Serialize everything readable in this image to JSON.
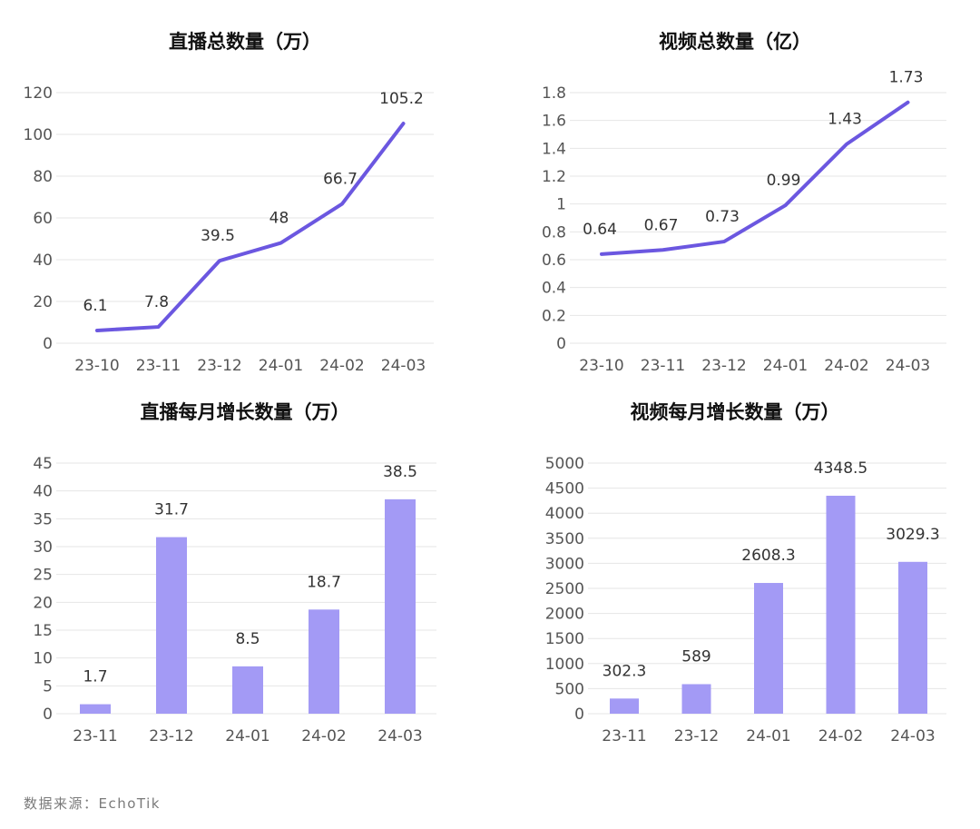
{
  "source_text": "数据来源：EchoTik",
  "colors": {
    "line": "#6b57e0",
    "bar": "#a39af5",
    "grid": "#e6e6e6",
    "text": "#555555",
    "title": "#111111"
  },
  "chart_data": [
    {
      "type": "line",
      "title": "直播总数量（万）",
      "categories": [
        "23-10",
        "23-11",
        "23-12",
        "24-01",
        "24-02",
        "24-03"
      ],
      "values": [
        6.1,
        7.8,
        39.5,
        48,
        66.7,
        105.2
      ],
      "value_labels": [
        "6.1",
        "7.8",
        "39.5",
        "48",
        "66.7",
        "105.2"
      ],
      "yticks": [
        "0",
        "20",
        "40",
        "60",
        "80",
        "100",
        "120"
      ],
      "ylim": [
        0,
        120
      ],
      "grid": true
    },
    {
      "type": "line",
      "title": "视频总数量（亿）",
      "categories": [
        "23-10",
        "23-11",
        "23-12",
        "24-01",
        "24-02",
        "24-03"
      ],
      "values": [
        0.64,
        0.67,
        0.73,
        0.99,
        1.43,
        1.73
      ],
      "value_labels": [
        "0.64",
        "0.67",
        "0.73",
        "0.99",
        "1.43",
        "1.73"
      ],
      "yticks": [
        "0",
        "0.2",
        "0.4",
        "0.6",
        "0.8",
        "1",
        "1.2",
        "1.4",
        "1.6",
        "1.8"
      ],
      "ylim": [
        0,
        1.8
      ],
      "grid": true
    },
    {
      "type": "bar",
      "title": "直播每月增长数量（万）",
      "categories": [
        "23-11",
        "23-12",
        "24-01",
        "24-02",
        "24-03"
      ],
      "values": [
        1.7,
        31.7,
        8.5,
        18.7,
        38.5
      ],
      "value_labels": [
        "1.7",
        "",
        "8.5",
        "18.7",
        "38.5"
      ],
      "value_labels_above_plot": [
        "",
        "31.7",
        "",
        "",
        ""
      ],
      "yticks": [
        "0",
        "5",
        "10",
        "15",
        "20",
        "25",
        "30",
        "35",
        "40",
        "45"
      ],
      "ylim": [
        0,
        45
      ],
      "grid": true
    },
    {
      "type": "bar",
      "title": "视频每月增长数量（万）",
      "categories": [
        "23-11",
        "23-12",
        "24-01",
        "24-02",
        "24-03"
      ],
      "values": [
        302.3,
        589,
        2608.3,
        4348.5,
        3029.3
      ],
      "value_labels": [
        "302.3",
        "589",
        "2608.3",
        "4348.5",
        "3029.3"
      ],
      "yticks": [
        "0",
        "500",
        "1000",
        "1500",
        "2000",
        "2500",
        "3000",
        "3500",
        "4000",
        "4500",
        "5000"
      ],
      "ylim": [
        0,
        5000
      ],
      "grid": true
    }
  ]
}
